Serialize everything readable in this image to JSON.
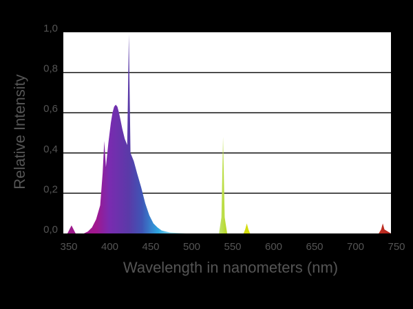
{
  "chart_data": {
    "type": "area",
    "title": "",
    "xlabel": "Wavelength in nanometers (nm)",
    "ylabel": "Relative Intensity",
    "xlim": [
      350,
      750
    ],
    "ylim": [
      0,
      1.0
    ],
    "x_ticks": [
      350,
      400,
      450,
      500,
      550,
      600,
      650,
      700,
      750
    ],
    "x_tick_labels": [
      "350",
      "400",
      "450",
      "500",
      "550",
      "600",
      "650",
      "700",
      "750"
    ],
    "y_ticks": [
      0,
      0.2,
      0.4,
      0.6,
      0.8,
      1.0
    ],
    "y_tick_labels": [
      "0,0",
      "0,2",
      "0,4",
      "0,6",
      "0,8",
      "1,0"
    ],
    "grid": true,
    "legend": "none",
    "series": [
      {
        "x": [
          350,
          355,
          360,
          365,
          370,
          375,
          380,
          385,
          390,
          395,
          398,
          400,
          402,
          405,
          408,
          410,
          412,
          414,
          416,
          418,
          420,
          422,
          425,
          428,
          430,
          432,
          434,
          436,
          438,
          440,
          445,
          450,
          455,
          460,
          465,
          470,
          480,
          500,
          540,
          543,
          545,
          547,
          550,
          570,
          572,
          574,
          576,
          578,
          600,
          700,
          735,
          738,
          740,
          742,
          750
        ],
        "values": [
          0,
          0,
          0.04,
          0,
          0,
          0,
          0.01,
          0.03,
          0.07,
          0.14,
          0.3,
          0.46,
          0.33,
          0.45,
          0.55,
          0.6,
          0.63,
          0.64,
          0.63,
          0.6,
          0.56,
          0.52,
          0.47,
          0.44,
          0.99,
          0.4,
          0.38,
          0.36,
          0.33,
          0.3,
          0.23,
          0.15,
          0.09,
          0.05,
          0.03,
          0.015,
          0.005,
          0,
          0,
          0.08,
          0.48,
          0.08,
          0,
          0,
          0.02,
          0.05,
          0.02,
          0,
          0,
          0,
          0,
          0.02,
          0.05,
          0.02,
          0
        ]
      }
    ]
  }
}
